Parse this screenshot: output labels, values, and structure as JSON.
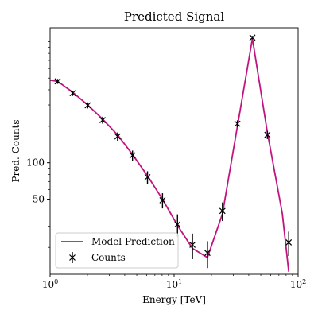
{
  "chart_data": {
    "type": "line",
    "title": "Predicted Signal",
    "xlabel": "Energy [TeV]",
    "ylabel": "Pred. Counts",
    "xscale": "log",
    "yscale": "log",
    "xlim": [
      1,
      100
    ],
    "ylim": [
      12,
      1300
    ],
    "x_ticks": [
      {
        "value": 1,
        "base": "10",
        "exp": "0"
      },
      {
        "value": 10,
        "base": "10",
        "exp": "1"
      },
      {
        "value": 100,
        "base": "10",
        "exp": "2"
      }
    ],
    "y_ticks": [
      {
        "value": 50,
        "label": "50"
      },
      {
        "value": 100,
        "label": "100"
      }
    ],
    "grid": false,
    "legend_position": "lower-left",
    "model": {
      "name": "Model Prediction",
      "color": "#c0157f",
      "x": [
        1.0,
        1.15,
        1.52,
        2.01,
        2.65,
        3.5,
        4.62,
        6.1,
        8.06,
        10.65,
        14.06,
        18.57,
        24.53,
        32.4,
        42.8,
        56.5,
        74.6,
        84.0
      ],
      "y": [
        480,
        470,
        382,
        300,
        229,
        170,
        117,
        78,
        50,
        30.4,
        19.6,
        16.5,
        37.8,
        200,
        1060,
        178,
        38,
        12.6
      ]
    },
    "counts": {
      "name": "Counts",
      "color": "#000000",
      "x": [
        1.15,
        1.52,
        2.01,
        2.65,
        3.5,
        4.62,
        6.1,
        8.06,
        10.65,
        14.06,
        18.57,
        24.53,
        32.4,
        42.8,
        56.5,
        84.0
      ],
      "y": [
        470,
        375,
        298,
        225,
        165,
        115,
        76,
        49,
        31,
        21,
        18,
        40,
        210,
        1080,
        170,
        22
      ],
      "yerr": [
        22,
        19,
        17,
        15,
        13,
        11,
        9,
        7,
        6.5,
        5,
        4.5,
        7,
        14,
        33,
        13,
        5
      ]
    }
  }
}
